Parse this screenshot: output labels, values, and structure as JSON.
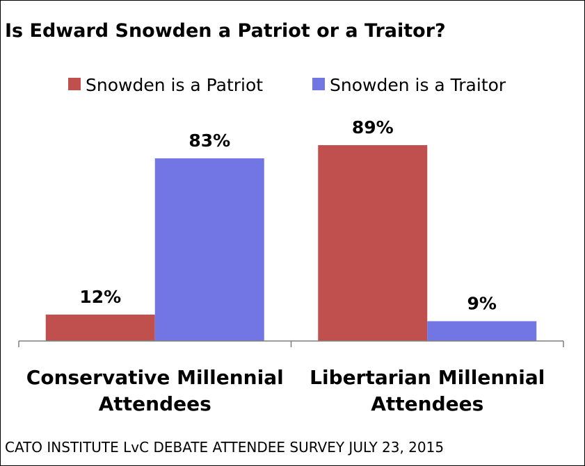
{
  "chart_data": {
    "type": "bar",
    "title": "Is Edward Snowden a Patriot or a Traitor?",
    "categories": [
      [
        "Conservative Millennial",
        "Attendees"
      ],
      [
        "Libertarian Millennial",
        "Attendees"
      ]
    ],
    "series": [
      {
        "name": "Snowden is a Patriot",
        "color": "#C0504D",
        "values": [
          12,
          89
        ],
        "labels": [
          "12%",
          "89%"
        ]
      },
      {
        "name": "Snowden is a Traitor",
        "color": "#7176E4",
        "values": [
          83,
          9
        ],
        "labels": [
          "83%",
          "9%"
        ]
      }
    ],
    "ylim": [
      0,
      100
    ],
    "legend_position": "top",
    "grid": false,
    "source": "CATO INSTITUTE LvC DEBATE ATTENDEE SURVEY JULY 23, 2015"
  }
}
